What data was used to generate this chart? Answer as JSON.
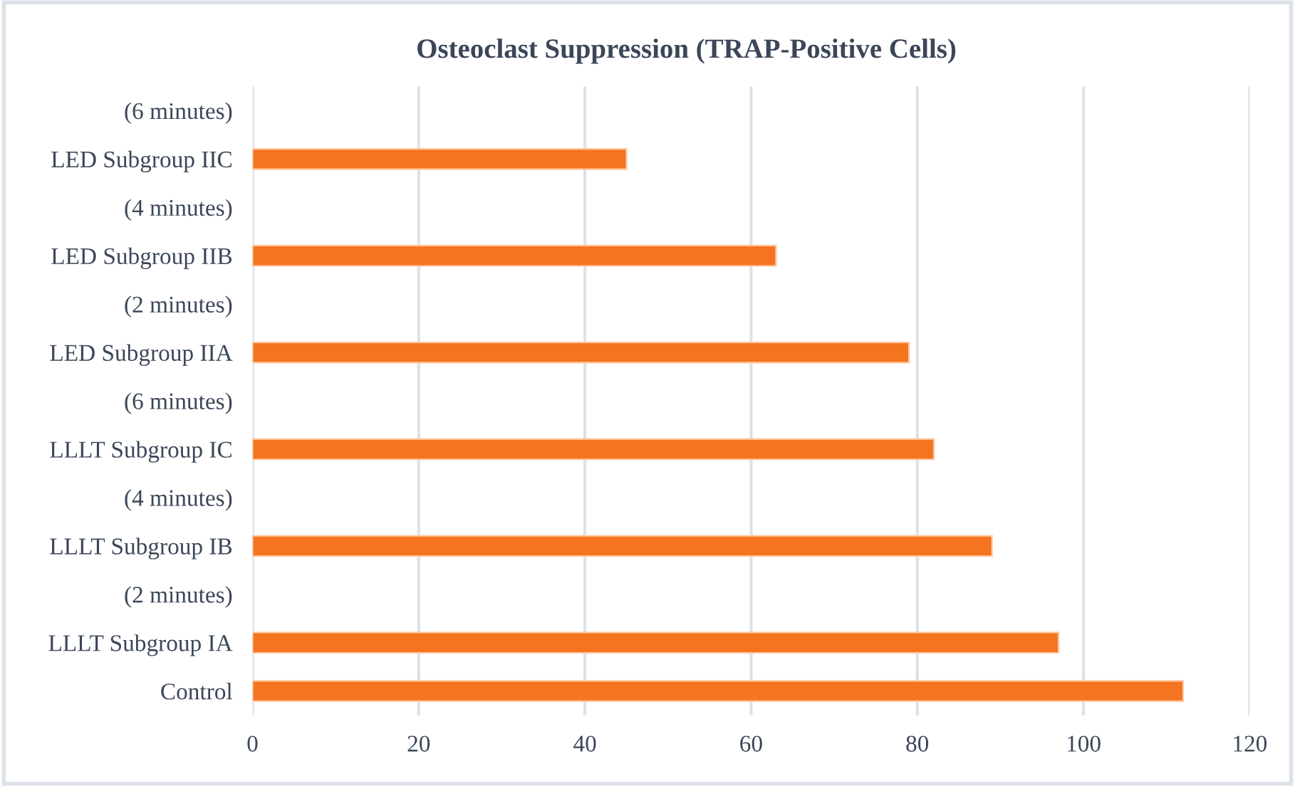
{
  "chart_data": {
    "type": "bar",
    "orientation": "horizontal",
    "title": "Osteoclast Suppression (TRAP-Positive Cells)",
    "categories": [
      "(6 minutes)",
      "LED Subgroup IIC",
      "(4 minutes)",
      "LED Subgroup IIB",
      "(2 minutes)",
      "LED Subgroup IIA",
      "(6 minutes)",
      "LLLT Subgroup IC",
      "(4 minutes)",
      "LLLT Subgroup IB",
      "(2 minutes)",
      "LLLT Subgroup IA",
      "Control"
    ],
    "values": [
      null,
      45,
      null,
      63,
      null,
      79,
      null,
      82,
      null,
      89,
      null,
      97,
      112
    ],
    "color": "#f47420",
    "xlim": [
      0,
      120
    ],
    "xticks": [
      0,
      20,
      40,
      60,
      80,
      100,
      120
    ],
    "grid": "x",
    "legend": false
  }
}
